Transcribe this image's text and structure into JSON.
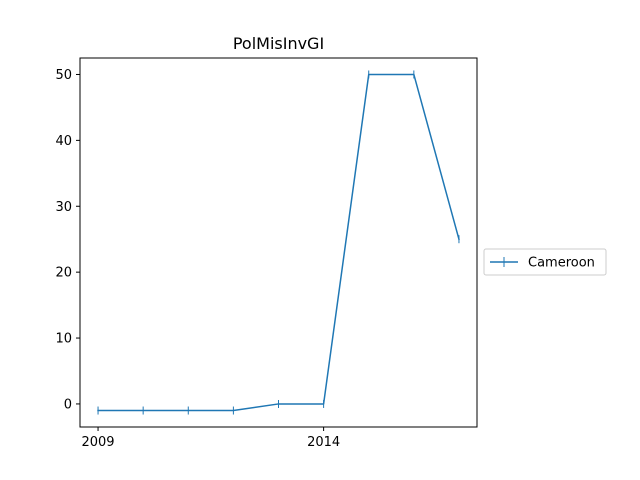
{
  "chart_data": {
    "type": "line",
    "title": "PolMisInvGI",
    "xlabel": "",
    "ylabel": "",
    "x": [
      2009,
      2010,
      2011,
      2012,
      2013,
      2014,
      2015,
      2016,
      2017
    ],
    "series": [
      {
        "name": "Cameroon",
        "color": "#1f77b4",
        "marker": "plus",
        "values": [
          -1,
          -1,
          -1,
          -1,
          0,
          0,
          50,
          50,
          25
        ]
      }
    ],
    "xticks": [
      2009,
      2014
    ],
    "yticks": [
      0,
      10,
      20,
      30,
      40,
      50
    ],
    "xlim": [
      2008.6,
      2017.4
    ],
    "ylim": [
      -3.5,
      52.5
    ],
    "grid": false,
    "legend_position": "right-outside"
  }
}
